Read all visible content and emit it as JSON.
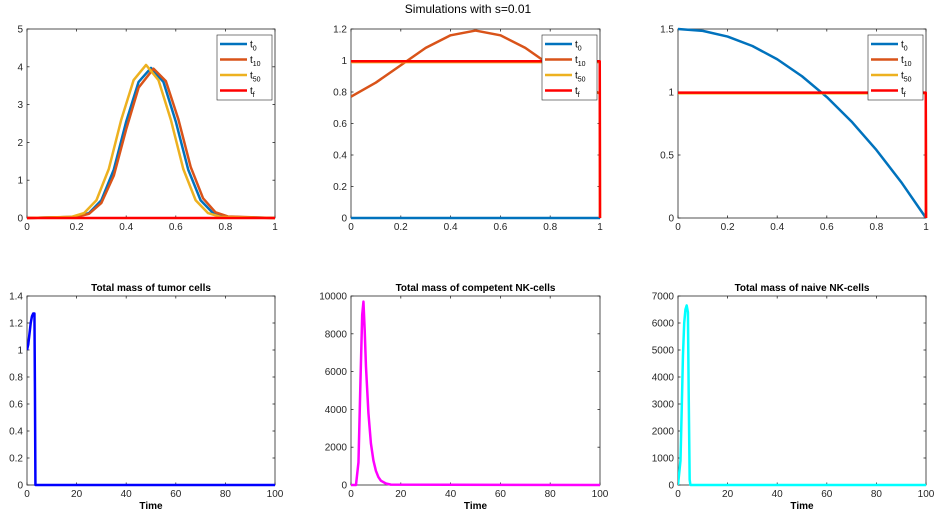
{
  "figure": {
    "suptitle": "Simulations with s=0.01"
  },
  "legend_labels": [
    {
      "base": "t",
      "sub": "0",
      "color": "#0072BD"
    },
    {
      "base": "t",
      "sub": "10",
      "color": "#D95319"
    },
    {
      "base": "t",
      "sub": "50",
      "color": "#EDB120"
    },
    {
      "base": "t",
      "sub": "f",
      "color": "#FF0000"
    }
  ],
  "chart_data": [
    {
      "type": "line",
      "title": "",
      "xlabel": "",
      "ylabel": "",
      "xlim": [
        0,
        1
      ],
      "ylim": [
        0,
        5
      ],
      "xticks": [
        0,
        0.2,
        0.4,
        0.6,
        0.8,
        1
      ],
      "xtick_labels": [
        "0",
        "0.2",
        "0.4",
        "0.6",
        "0.8",
        "1"
      ],
      "yticks": [
        0,
        1,
        2,
        3,
        4,
        5
      ],
      "ytick_labels": [
        "0",
        "1",
        "2",
        "3",
        "4",
        "5"
      ],
      "legend": "top-right",
      "series": [
        {
          "name": "t0",
          "color": "#0072BD",
          "x": [
            0,
            0.2,
            0.25,
            0.3,
            0.35,
            0.4,
            0.45,
            0.5,
            0.55,
            0.6,
            0.65,
            0.7,
            0.75,
            0.8,
            1
          ],
          "y": [
            0,
            0.03,
            0.13,
            0.47,
            1.28,
            2.55,
            3.6,
            3.97,
            3.6,
            2.55,
            1.28,
            0.47,
            0.13,
            0.03,
            0
          ]
        },
        {
          "name": "t10",
          "color": "#D95319",
          "x": [
            0,
            0.2,
            0.25,
            0.3,
            0.35,
            0.4,
            0.45,
            0.51,
            0.56,
            0.61,
            0.66,
            0.71,
            0.76,
            0.81,
            1
          ],
          "y": [
            0,
            0.03,
            0.11,
            0.4,
            1.12,
            2.35,
            3.45,
            3.95,
            3.62,
            2.62,
            1.35,
            0.52,
            0.15,
            0.04,
            0
          ]
        },
        {
          "name": "t50",
          "color": "#EDB120",
          "x": [
            0,
            0.18,
            0.23,
            0.28,
            0.33,
            0.38,
            0.43,
            0.48,
            0.53,
            0.58,
            0.63,
            0.68,
            0.73,
            0.78,
            1
          ],
          "y": [
            0,
            0.03,
            0.13,
            0.47,
            1.3,
            2.6,
            3.65,
            4.05,
            3.65,
            2.6,
            1.3,
            0.47,
            0.13,
            0.03,
            0
          ]
        },
        {
          "name": "tf",
          "color": "#FF0000",
          "x": [
            0,
            1
          ],
          "y": [
            0,
            0
          ]
        }
      ]
    },
    {
      "type": "line",
      "title": "",
      "xlabel": "",
      "ylabel": "",
      "xlim": [
        0,
        1
      ],
      "ylim": [
        0,
        1.2
      ],
      "xticks": [
        0,
        0.2,
        0.4,
        0.6,
        0.8,
        1
      ],
      "xtick_labels": [
        "0",
        "0.2",
        "0.4",
        "0.6",
        "0.8",
        "1"
      ],
      "yticks": [
        0,
        0.2,
        0.4,
        0.6,
        0.8,
        1,
        1.2
      ],
      "ytick_labels": [
        "0",
        "0.2",
        "0.4",
        "0.6",
        "0.8",
        "1",
        "1.2"
      ],
      "legend": "top-right",
      "series": [
        {
          "name": "t0",
          "color": "#0072BD",
          "x": [
            0,
            1
          ],
          "y": [
            0,
            0
          ]
        },
        {
          "name": "t10",
          "color": "#D95319",
          "x": [
            0,
            0.1,
            0.2,
            0.3,
            0.4,
            0.5,
            0.6,
            0.7,
            0.8,
            0.9,
            1
          ],
          "y": [
            0.77,
            0.86,
            0.97,
            1.08,
            1.16,
            1.19,
            1.16,
            1.08,
            0.97,
            0.86,
            0.79
          ]
        },
        {
          "name": "t50",
          "color": "#EDB120",
          "x": [
            0,
            0.999,
            1
          ],
          "y": [
            0.99,
            0.99,
            0
          ]
        },
        {
          "name": "tf",
          "color": "#FF0000",
          "x": [
            0,
            0.999,
            1
          ],
          "y": [
            0.995,
            0.995,
            0
          ]
        }
      ]
    },
    {
      "type": "line",
      "title": "",
      "xlabel": "",
      "ylabel": "",
      "xlim": [
        0,
        1
      ],
      "ylim": [
        0,
        1.5
      ],
      "xticks": [
        0,
        0.2,
        0.4,
        0.6,
        0.8,
        1
      ],
      "xtick_labels": [
        "0",
        "0.2",
        "0.4",
        "0.6",
        "0.8",
        "1"
      ],
      "yticks": [
        0,
        0.5,
        1,
        1.5
      ],
      "ytick_labels": [
        "0",
        "0.5",
        "1",
        "1.5"
      ],
      "legend": "top-right",
      "series": [
        {
          "name": "t0",
          "color": "#0072BD",
          "x": [
            0,
            0.1,
            0.2,
            0.3,
            0.4,
            0.5,
            0.6,
            0.7,
            0.8,
            0.9,
            1
          ],
          "y": [
            1.5,
            1.485,
            1.44,
            1.365,
            1.26,
            1.125,
            0.96,
            0.765,
            0.54,
            0.285,
            0
          ]
        },
        {
          "name": "t10",
          "color": "#D95319",
          "x": [
            0,
            0.999,
            1
          ],
          "y": [
            0.99,
            0.99,
            0
          ]
        },
        {
          "name": "t50",
          "color": "#EDB120",
          "x": [
            0,
            0.999,
            1
          ],
          "y": [
            0.99,
            0.99,
            0
          ]
        },
        {
          "name": "tf",
          "color": "#FF0000",
          "x": [
            0,
            0.999,
            1
          ],
          "y": [
            0.995,
            0.995,
            0
          ]
        }
      ]
    },
    {
      "type": "line",
      "title": "Total mass of tumor cells",
      "xlabel": "Time",
      "ylabel": "",
      "xlim": [
        0,
        100
      ],
      "ylim": [
        0,
        1.4
      ],
      "xticks": [
        0,
        20,
        40,
        60,
        80,
        100
      ],
      "xtick_labels": [
        "0",
        "20",
        "40",
        "60",
        "80",
        "100"
      ],
      "yticks": [
        0,
        0.2,
        0.4,
        0.6,
        0.8,
        1,
        1.2,
        1.4
      ],
      "ytick_labels": [
        "0",
        "0.2",
        "0.4",
        "0.6",
        "0.8",
        "1",
        "1.2",
        "1.4"
      ],
      "series": [
        {
          "name": "",
          "color": "#0000FF",
          "x": [
            0,
            0.5,
            1,
            1.5,
            2,
            2.5,
            3,
            3.2,
            3.4,
            4,
            100
          ],
          "y": [
            1.0,
            1.04,
            1.12,
            1.2,
            1.25,
            1.27,
            1.27,
            0.7,
            0,
            0,
            0
          ]
        }
      ]
    },
    {
      "type": "line",
      "title": "Total mass of competent NK-cells",
      "xlabel": "Time",
      "ylabel": "",
      "xlim": [
        0,
        100
      ],
      "ylim": [
        0,
        10000
      ],
      "xticks": [
        0,
        20,
        40,
        60,
        80,
        100
      ],
      "xtick_labels": [
        "0",
        "20",
        "40",
        "60",
        "80",
        "100"
      ],
      "yticks": [
        0,
        2000,
        4000,
        6000,
        8000,
        10000
      ],
      "ytick_labels": [
        "0",
        "2000",
        "4000",
        "6000",
        "8000",
        "10000"
      ],
      "series": [
        {
          "name": "",
          "color": "#FF00FF",
          "x": [
            0,
            2,
            3,
            3.8,
            4.5,
            5,
            5.5,
            6,
            7,
            8,
            9,
            10,
            11,
            12,
            14,
            16,
            100
          ],
          "y": [
            0,
            0,
            1200,
            5500,
            9000,
            9700,
            8200,
            6300,
            3800,
            2200,
            1300,
            750,
            420,
            230,
            80,
            20,
            0
          ]
        }
      ]
    },
    {
      "type": "line",
      "title": "Total mass of naive NK-cells",
      "xlabel": "Time",
      "ylabel": "",
      "xlim": [
        0,
        100
      ],
      "ylim": [
        0,
        7000
      ],
      "xticks": [
        0,
        20,
        40,
        60,
        80,
        100
      ],
      "xtick_labels": [
        "0",
        "20",
        "40",
        "60",
        "80",
        "100"
      ],
      "yticks": [
        0,
        1000,
        2000,
        3000,
        4000,
        5000,
        6000,
        7000
      ],
      "ytick_labels": [
        "0",
        "1000",
        "2000",
        "3000",
        "4000",
        "5000",
        "6000",
        "7000"
      ],
      "series": [
        {
          "name": "",
          "color": "#00FFFF",
          "x": [
            0,
            1,
            1.5,
            2,
            2.5,
            3,
            3.5,
            4,
            4.3,
            4.7,
            5,
            100
          ],
          "y": [
            0,
            900,
            2800,
            4800,
            6000,
            6500,
            6650,
            6400,
            3500,
            200,
            0,
            0
          ]
        }
      ]
    }
  ]
}
